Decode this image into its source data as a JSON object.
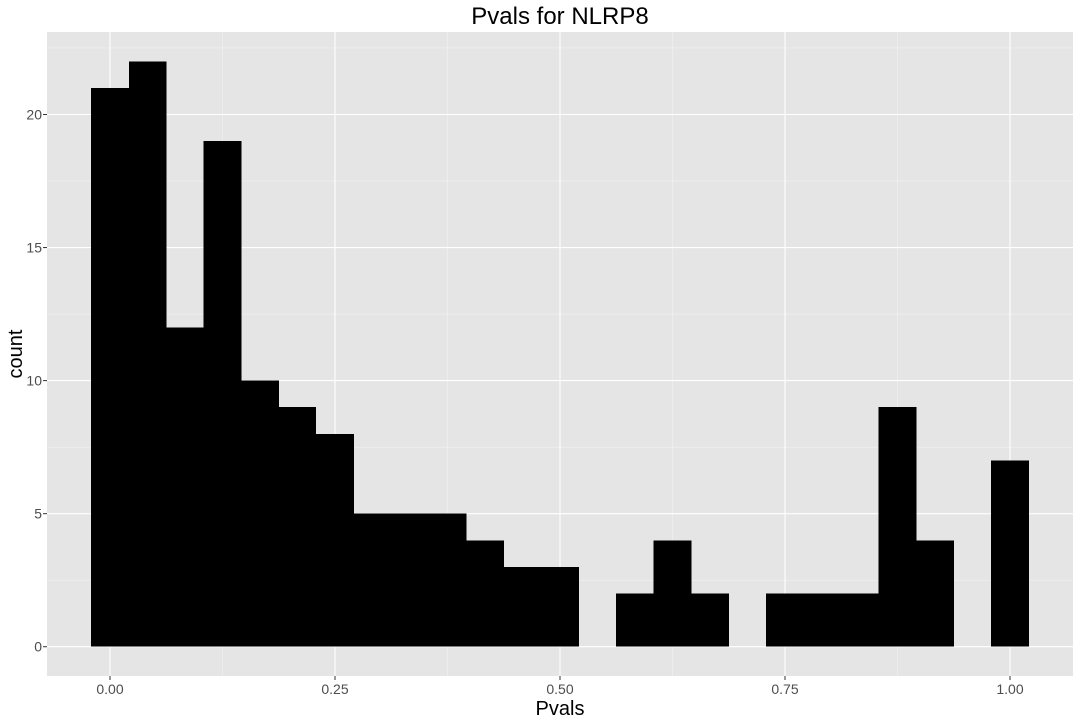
{
  "chart_data": {
    "type": "bar",
    "title": "Pvals for NLRP8",
    "xlabel": "Pvals",
    "ylabel": "count",
    "xlim": [
      -0.07,
      1.07
    ],
    "ylim": [
      -1.1,
      23.1
    ],
    "x_ticks": [
      "0.00",
      "0.25",
      "0.50",
      "0.75",
      "1.00"
    ],
    "x_tick_values": [
      0,
      0.25,
      0.5,
      0.75,
      1.0
    ],
    "y_ticks": [
      "0",
      "5",
      "10",
      "15",
      "20"
    ],
    "y_tick_values": [
      0,
      5,
      10,
      15,
      20
    ],
    "bin_width": 0.0417,
    "bin_centers": [
      0.0,
      0.0417,
      0.0833,
      0.125,
      0.1667,
      0.2083,
      0.25,
      0.2917,
      0.3333,
      0.375,
      0.4167,
      0.4583,
      0.5,
      0.5417,
      0.5833,
      0.625,
      0.6667,
      0.7083,
      0.75,
      0.7917,
      0.8333,
      0.875,
      0.9167,
      0.9583,
      1.0
    ],
    "values": [
      21,
      22,
      12,
      19,
      10,
      9,
      8,
      5,
      5,
      5,
      4,
      3,
      3,
      0,
      2,
      4,
      2,
      0,
      2,
      2,
      2,
      9,
      4,
      0,
      7
    ],
    "bar_color": "#000000",
    "panel_color": "#e5e5e5",
    "grid": true,
    "legend": "none"
  }
}
